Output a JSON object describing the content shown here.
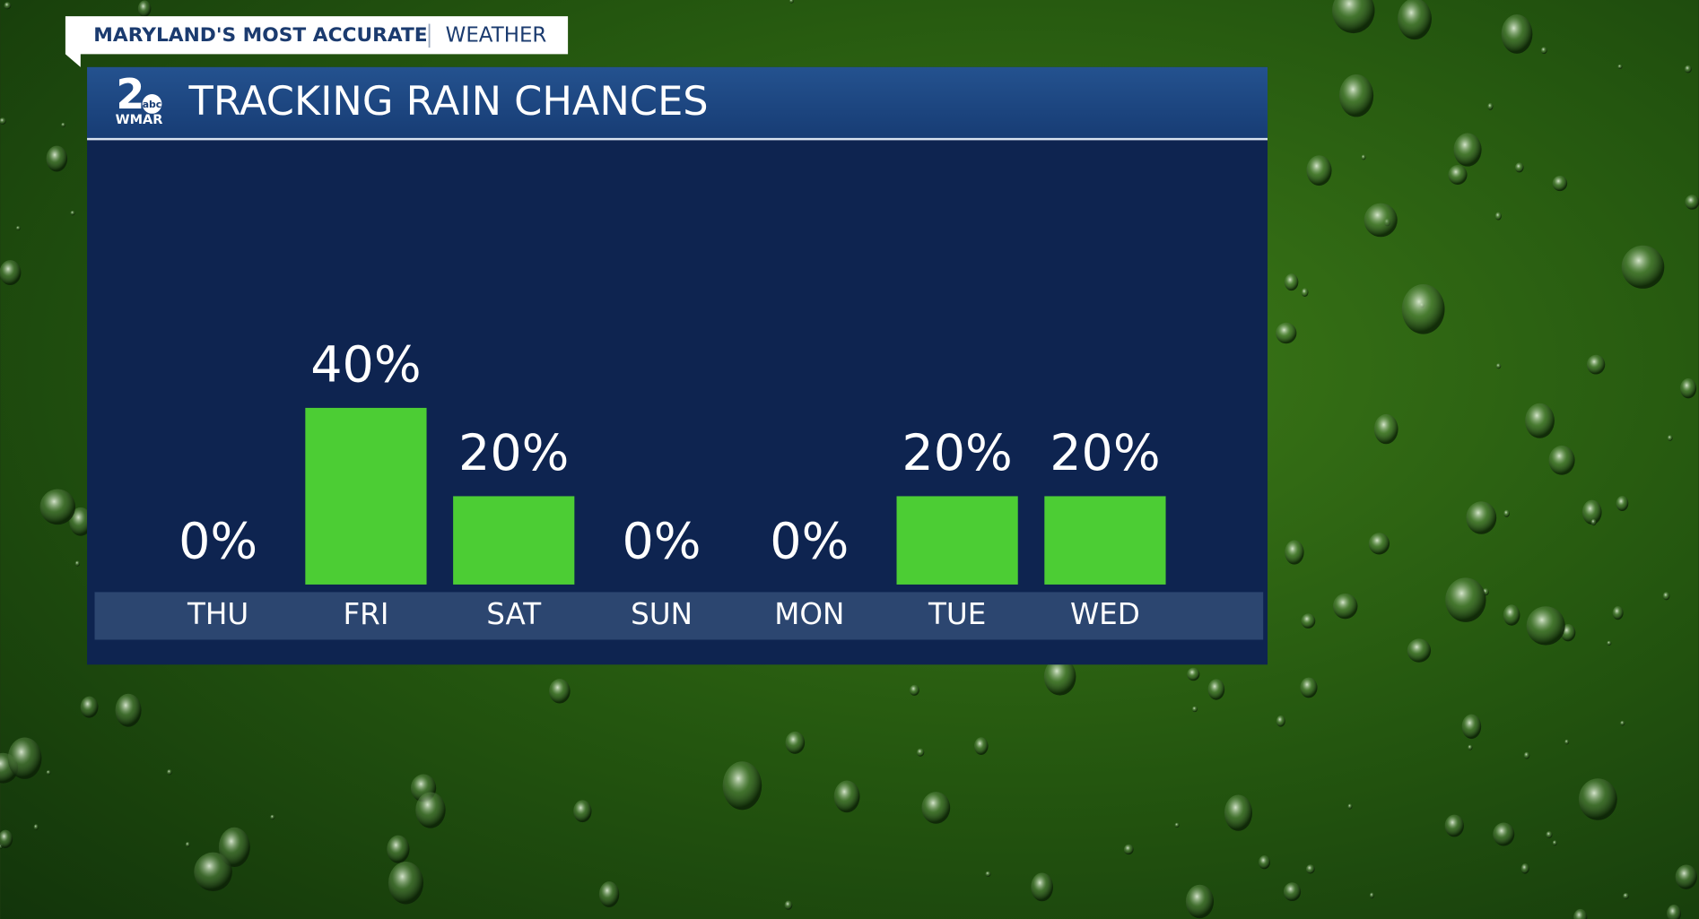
{
  "header": {
    "tagline": "MARYLAND'S MOST ACCURATE",
    "section": "WEATHER"
  },
  "logo": {
    "number": "2",
    "network": "abc",
    "station": "WMAR"
  },
  "chart_data": {
    "type": "bar",
    "title": "TRACKING RAIN CHANCES",
    "categories": [
      "THU",
      "FRI",
      "SAT",
      "SUN",
      "MON",
      "TUE",
      "WED"
    ],
    "values": [
      0,
      40,
      20,
      0,
      0,
      20,
      20
    ],
    "value_labels": [
      "0%",
      "40%",
      "20%",
      "0%",
      "0%",
      "20%",
      "20%"
    ],
    "color": "#4ccd34",
    "ylim": [
      0,
      100
    ]
  }
}
